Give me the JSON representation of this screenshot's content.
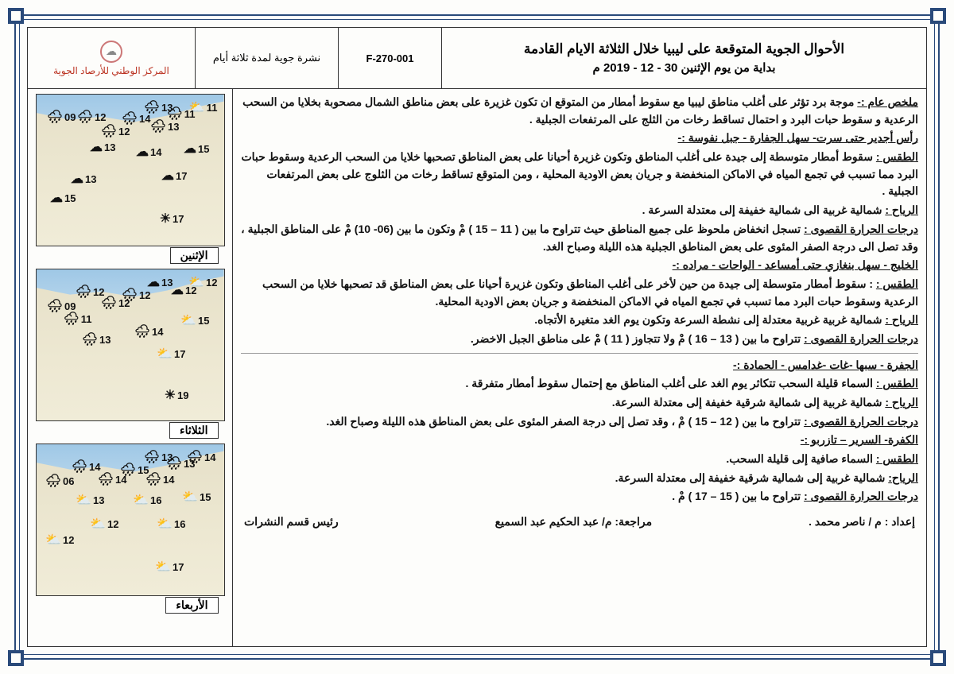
{
  "header": {
    "title_line1": "الأحوال الجوية المتوقعة على ليبيا خلال الثلاثة الايام القادمة",
    "title_line2": "بداية من يوم الإثنين  30 - 12 - 2019 م",
    "code": "F-270-001",
    "bulletin_type": "نشرة جوية لمدة ثلاثة أيام",
    "org_name": "المركز الوطني للأرصاد الجوية"
  },
  "summary_label": "ملخص عام :-",
  "summary_text": " موجة برد تؤثر على أغلب مناطق ليبيا مع سقوط أمطار من المتوقع ان تكون غزيرة على بعض مناطق الشمال مصحوبة بخلايا من السحب الرعدية و سقوط حبات البرد و احتمال تساقط رخات من الثلج على المرتفعات الجبلية .",
  "regions": [
    {
      "name": "رأس أجدير حتى سرت- سهل الجفارة - جبل نفوسة :-",
      "weather_label": "الطقس :",
      "weather": " سقوط أمطار متوسطة إلى جيدة على أغلب المناطق وتكون غزيرة أحيانا على بعض المناطق تصحبها خلايا من السحب الرعدية وسقوط حبات البرد مما تسبب في تجمع المياه في الاماكن المنخفضة و جريان بعض الاودية المحلية ، ومن المتوقع تساقط رخات من الثلوج على بعض المرتفعات الجبلية .",
      "wind_label": "الرياح :",
      "wind": " شمالية غربية الى شمالية خفيفة إلى معتدلة السرعة .",
      "temp_label": "درجات الحرارة القصوى :",
      "temp": " تسجل انخفاض ملحوظ على جميع المناطق حيث تتراوح ما بين ( 11 – 15 ) مْ وتكون ما بين (06- 10) مْ على المناطق الجبلية ، وقد تصل الى درجة الصفر المئوى على بعض المناطق الجبلية هذه الليلة وصباح الغد."
    },
    {
      "name": "الخليج - سهل بنغازي حتى أمساعد - الواحات - مراده :-",
      "weather_label": "الطقس :",
      "weather": " : سقوط أمطار متوسطة إلى جيدة  من حين لأخر على أغلب المناطق وتكون غزيرة أحيانا على بعض المناطق قد تصحبها خلايا من السحب الرعدية وسقوط حبات البرد مما تسبب في تجمع المياه في الاماكن المنخفضة و جريان بعض الاودية المحلية.",
      "wind_label": "الرياح :",
      "wind": " شمالية غربية غربية معتدلة إلى نشطة السرعة وتكون يوم الغد متغيرة الأتجاه.",
      "temp_label": "درجات الحرارة القصوى :",
      "temp": " تتراوح ما بين ( 13 – 16 ) مْ ولا تتجاوز ( 11 ) مْ على مناطق الجبل الاخضر."
    },
    {
      "name": "الجفرة - سبها -غات -غدامس - الحمادة :-",
      "weather_label": "الطقس :",
      "weather": " السماء قليلة السحب تتكاثر يوم الغد على أغلب المناطق مع إحتمال سقوط أمطار متفرقة .",
      "wind_label": "الرياح :",
      "wind": "  شمالية غربية إلى شمالية شرقية خفيفة إلى معتدلة السرعة.",
      "temp_label": "درجات الحرارة القصوى :",
      "temp": " تتراوح ما بين ( 12 – 15 ) مْ ، وقد تصل إلى درجة الصفر المئوى على بعض المناطق هذه الليلة وصباح الغد."
    },
    {
      "name": "الكفرة- السرير – تازربو :-",
      "weather_label": "الطقس :",
      "weather": " السماء صافية إلى قليلة السحب.",
      "wind_label": "الرياح:",
      "wind": " شمالية غربية إلى شمالية شرقية خفيفة إلى معتدلة السرعة.",
      "temp_label": "درجات الحرارة القصوى :",
      "temp": " تتراوح ما بين ( 15 – 17 ) مْ ."
    }
  ],
  "footer": {
    "prepared_by": "إعداد : م / ناصر محمد .",
    "reviewed_by": "مراجعة: م/ عبد الحكيم عبد السميع",
    "head": "رئيس قسم النشرات"
  },
  "maps": [
    {
      "day": "الإثنين",
      "points": [
        {
          "t": 6,
          "r": 8,
          "temp": "11",
          "icon": "⛅"
        },
        {
          "t": 14,
          "r": 36,
          "temp": "11",
          "icon": "🌧"
        },
        {
          "t": 6,
          "r": 64,
          "temp": "13",
          "icon": "🌧"
        },
        {
          "t": 20,
          "r": 92,
          "temp": "14",
          "icon": "🌧"
        },
        {
          "t": 30,
          "r": 56,
          "temp": "13",
          "icon": "🌧"
        },
        {
          "t": 36,
          "r": 118,
          "temp": "12",
          "icon": "🌧"
        },
        {
          "t": 18,
          "r": 148,
          "temp": "12",
          "icon": "🌧"
        },
        {
          "t": 18,
          "r": 186,
          "temp": "09",
          "icon": "🌧"
        },
        {
          "t": 58,
          "r": 18,
          "temp": "15",
          "icon": "☁"
        },
        {
          "t": 62,
          "r": 78,
          "temp": "14",
          "icon": "☁"
        },
        {
          "t": 56,
          "r": 136,
          "temp": "13",
          "icon": "☁"
        },
        {
          "t": 92,
          "r": 46,
          "temp": "17",
          "icon": "☁"
        },
        {
          "t": 96,
          "r": 160,
          "temp": "13",
          "icon": "☁"
        },
        {
          "t": 120,
          "r": 186,
          "temp": "15",
          "icon": "☁"
        },
        {
          "t": 146,
          "r": 50,
          "temp": "17",
          "icon": "☀"
        }
      ]
    },
    {
      "day": "الثلاثاء",
      "points": [
        {
          "t": 6,
          "r": 8,
          "temp": "12",
          "icon": "⛅"
        },
        {
          "t": 16,
          "r": 34,
          "temp": "12",
          "icon": "☁"
        },
        {
          "t": 6,
          "r": 64,
          "temp": "13",
          "icon": "☁"
        },
        {
          "t": 22,
          "r": 92,
          "temp": "12",
          "icon": "🌧"
        },
        {
          "t": 32,
          "r": 118,
          "temp": "12",
          "icon": "🌧"
        },
        {
          "t": 18,
          "r": 150,
          "temp": "12",
          "icon": "🌧"
        },
        {
          "t": 36,
          "r": 186,
          "temp": "09",
          "icon": "🌧"
        },
        {
          "t": 52,
          "r": 166,
          "temp": "11",
          "icon": "🌧"
        },
        {
          "t": 54,
          "r": 18,
          "temp": "15",
          "icon": "⛅"
        },
        {
          "t": 68,
          "r": 76,
          "temp": "14",
          "icon": "🌧"
        },
        {
          "t": 78,
          "r": 142,
          "temp": "13",
          "icon": "🌧"
        },
        {
          "t": 96,
          "r": 48,
          "temp": "17",
          "icon": "⛅"
        },
        {
          "t": 148,
          "r": 44,
          "temp": "19",
          "icon": "☀"
        }
      ]
    },
    {
      "day": "الأربعاء",
      "points": [
        {
          "t": 6,
          "r": 10,
          "temp": "14",
          "icon": "🌧"
        },
        {
          "t": 14,
          "r": 36,
          "temp": "13",
          "icon": "🌧"
        },
        {
          "t": 6,
          "r": 64,
          "temp": "13",
          "icon": "🌧"
        },
        {
          "t": 22,
          "r": 94,
          "temp": "15",
          "icon": "🌧"
        },
        {
          "t": 34,
          "r": 62,
          "temp": "14",
          "icon": "🌧"
        },
        {
          "t": 34,
          "r": 122,
          "temp": "14",
          "icon": "🌧"
        },
        {
          "t": 18,
          "r": 155,
          "temp": "14",
          "icon": "🌧"
        },
        {
          "t": 36,
          "r": 188,
          "temp": "06",
          "icon": "🌧"
        },
        {
          "t": 56,
          "r": 16,
          "temp": "15",
          "icon": "⛅"
        },
        {
          "t": 60,
          "r": 78,
          "temp": "16",
          "icon": "⛅"
        },
        {
          "t": 60,
          "r": 150,
          "temp": "13",
          "icon": "⛅"
        },
        {
          "t": 90,
          "r": 48,
          "temp": "16",
          "icon": "⛅"
        },
        {
          "t": 90,
          "r": 132,
          "temp": "12",
          "icon": "⛅"
        },
        {
          "t": 110,
          "r": 188,
          "temp": "12",
          "icon": "⛅"
        },
        {
          "t": 144,
          "r": 50,
          "temp": "17",
          "icon": "⛅"
        }
      ]
    }
  ]
}
